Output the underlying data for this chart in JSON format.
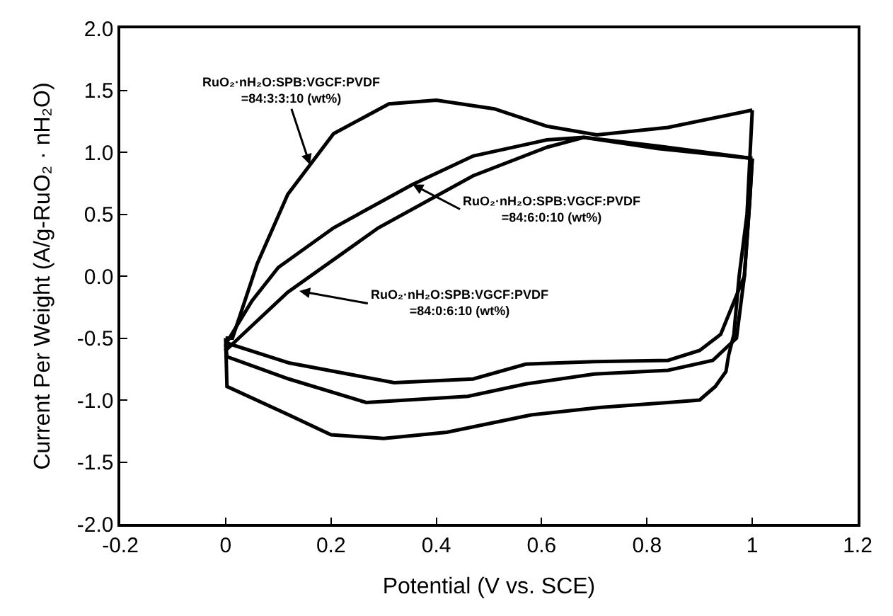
{
  "chart_data": {
    "type": "line",
    "xlabel": "Potential (V vs. SCE)",
    "ylabel": "Current Per Weight (A/g-RuO₂ · nH₂O)",
    "xlim": [
      -0.2,
      1.2
    ],
    "ylim": [
      -2.0,
      2.0
    ],
    "xticks": [
      {
        "value": -0.2,
        "label": "-0.2"
      },
      0,
      0.2,
      0.4,
      0.6,
      0.8,
      1,
      1.2
    ],
    "yticks": [
      {
        "value": -2.0,
        "label": "-2.0"
      },
      {
        "value": -1.5,
        "label": "-1.5"
      },
      {
        "value": -1.0,
        "label": "-1.0"
      },
      {
        "value": -0.5,
        "label": "-0.5"
      },
      {
        "value": 0.0,
        "label": "0.0"
      },
      {
        "value": 0.5,
        "label": "0.5"
      },
      {
        "value": 1.0,
        "label": "1.0"
      },
      {
        "value": 1.5,
        "label": "1.5"
      },
      {
        "value": 2.0,
        "label": "2.0"
      }
    ],
    "marker": "none",
    "line_style": "solid",
    "series": [
      {
        "color": "#000000",
        "x": [
          0,
          0.013,
          0.06,
          0.118,
          0.205,
          0.31,
          0.4,
          0.51,
          0.61,
          0.705,
          0.84,
          1.0
        ],
        "values": [
          -0.5,
          -0.5,
          0.1,
          0.66,
          1.15,
          1.39,
          1.42,
          1.35,
          1.21,
          1.14,
          1.2,
          1.34
        ]
      },
      {
        "color": "#000000",
        "x": [
          1.0,
          0.99,
          0.975,
          0.965,
          0.955,
          0.95,
          0.93,
          0.9,
          0.84,
          0.71,
          0.58,
          0.42,
          0.3,
          0.2,
          0.12,
          0.0025,
          0
        ],
        "values": [
          1.34,
          0.5,
          0.0,
          -0.47,
          -0.64,
          -0.77,
          -0.89,
          -1.0,
          -1.02,
          -1.06,
          -1.12,
          -1.26,
          -1.31,
          -1.28,
          -1.12,
          -0.89,
          -0.5
        ]
      },
      {
        "color": "#000000",
        "x": [
          0,
          0.05,
          0.1,
          0.205,
          0.355,
          0.47,
          0.61,
          0.68,
          0.82,
          1.0
        ],
        "values": [
          -0.55,
          -0.2,
          0.07,
          0.39,
          0.74,
          0.97,
          1.1,
          1.12,
          1.05,
          0.95
        ]
      },
      {
        "color": "#000000",
        "x": [
          1.0,
          0.995,
          0.985,
          0.97,
          0.925,
          0.84,
          0.7,
          0.57,
          0.46,
          0.267,
          0.12,
          0.0025,
          0
        ],
        "values": [
          0.95,
          0.6,
          0.0,
          -0.5,
          -0.68,
          -0.76,
          -0.79,
          -0.87,
          -0.97,
          -1.02,
          -0.83,
          -0.65,
          -0.55
        ]
      },
      {
        "color": "#000000",
        "x": [
          0,
          0.05,
          0.118,
          0.29,
          0.47,
          0.61,
          0.68,
          0.82,
          1.0
        ],
        "values": [
          -0.6,
          -0.4,
          -0.13,
          0.39,
          0.81,
          1.04,
          1.12,
          1.03,
          0.95
        ]
      },
      {
        "color": "#000000",
        "x": [
          1.0,
          0.995,
          0.985,
          0.94,
          0.9,
          0.84,
          0.7,
          0.57,
          0.47,
          0.32,
          0.12,
          0.0025,
          0
        ],
        "values": [
          0.95,
          0.6,
          0.0,
          -0.47,
          -0.6,
          -0.68,
          -0.69,
          -0.71,
          -0.83,
          -0.86,
          -0.7,
          -0.54,
          -0.6
        ]
      }
    ],
    "annotations": [
      {
        "text": "RuO₂·nH₂O:SPB:VGCF:PVDF\n=84:3:3:10 (wt%)",
        "x": 0.16,
        "y": 0.9
      },
      {
        "text": "RuO₂·nH₂O:SPB:VGCF:PVDF\n=84:6:0:10 (wt%)",
        "x": 0.355,
        "y": 0.74
      },
      {
        "text": "RuO₂·nH₂O:SPB:VGCF:PVDF\n=84:0:6:10 (wt%)",
        "x": 0.14,
        "y": -0.12
      }
    ]
  }
}
